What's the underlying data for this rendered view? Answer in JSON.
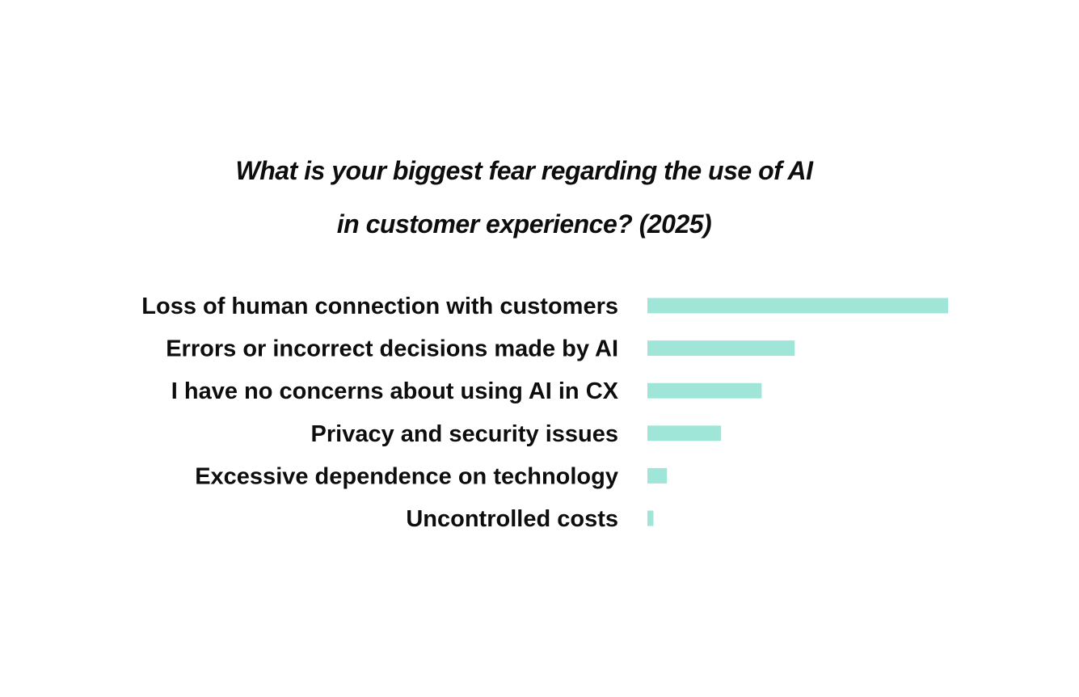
{
  "chart_data": {
    "type": "bar",
    "orientation": "horizontal",
    "title": [
      "What is your biggest fear regarding the use of AI",
      "in customer experience? (2025)"
    ],
    "categories": [
      "Loss of human connection with customers",
      "Errors or incorrect decisions made by AI",
      "I have no concerns about using AI in CX",
      "Privacy and security issues",
      "Excessive dependence on technology",
      "Uncontrolled costs"
    ],
    "values": [
      100,
      49,
      38,
      24.5,
      6.5,
      2
    ],
    "unit": "relative share (longest bar = 100)",
    "xlim": [
      0,
      100
    ],
    "color": "#a0e6d8",
    "grid": false,
    "legend": "none",
    "axes_shown": false
  }
}
